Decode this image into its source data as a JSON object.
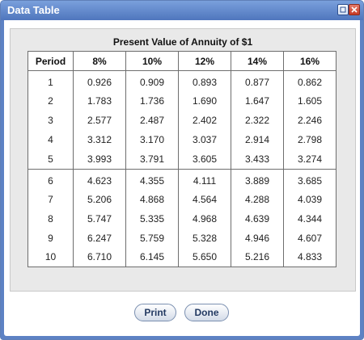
{
  "window": {
    "title": "Data Table"
  },
  "table": {
    "title": "Present Value of Annuity of $1",
    "headers": [
      "Period",
      "8%",
      "10%",
      "12%",
      "14%",
      "16%"
    ],
    "group1": [
      [
        "1",
        "0.926",
        "0.909",
        "0.893",
        "0.877",
        "0.862"
      ],
      [
        "2",
        "1.783",
        "1.736",
        "1.690",
        "1.647",
        "1.605"
      ],
      [
        "3",
        "2.577",
        "2.487",
        "2.402",
        "2.322",
        "2.246"
      ],
      [
        "4",
        "3.312",
        "3.170",
        "3.037",
        "2.914",
        "2.798"
      ],
      [
        "5",
        "3.993",
        "3.791",
        "3.605",
        "3.433",
        "3.274"
      ]
    ],
    "group2": [
      [
        "6",
        "4.623",
        "4.355",
        "4.111",
        "3.889",
        "3.685"
      ],
      [
        "7",
        "5.206",
        "4.868",
        "4.564",
        "4.288",
        "4.039"
      ],
      [
        "8",
        "5.747",
        "5.335",
        "4.968",
        "4.639",
        "4.344"
      ],
      [
        "9",
        "6.247",
        "5.759",
        "5.328",
        "4.946",
        "4.607"
      ],
      [
        "10",
        "6.710",
        "6.145",
        "5.650",
        "5.216",
        "4.833"
      ]
    ]
  },
  "buttons": {
    "print": "Print",
    "done": "Done"
  },
  "icons": {
    "minimize": "minimize-icon",
    "close": "close-icon"
  },
  "colors": {
    "titlebar": "#5d82c4",
    "title_text": "#ffffff",
    "panel": "#e9e9e9"
  }
}
